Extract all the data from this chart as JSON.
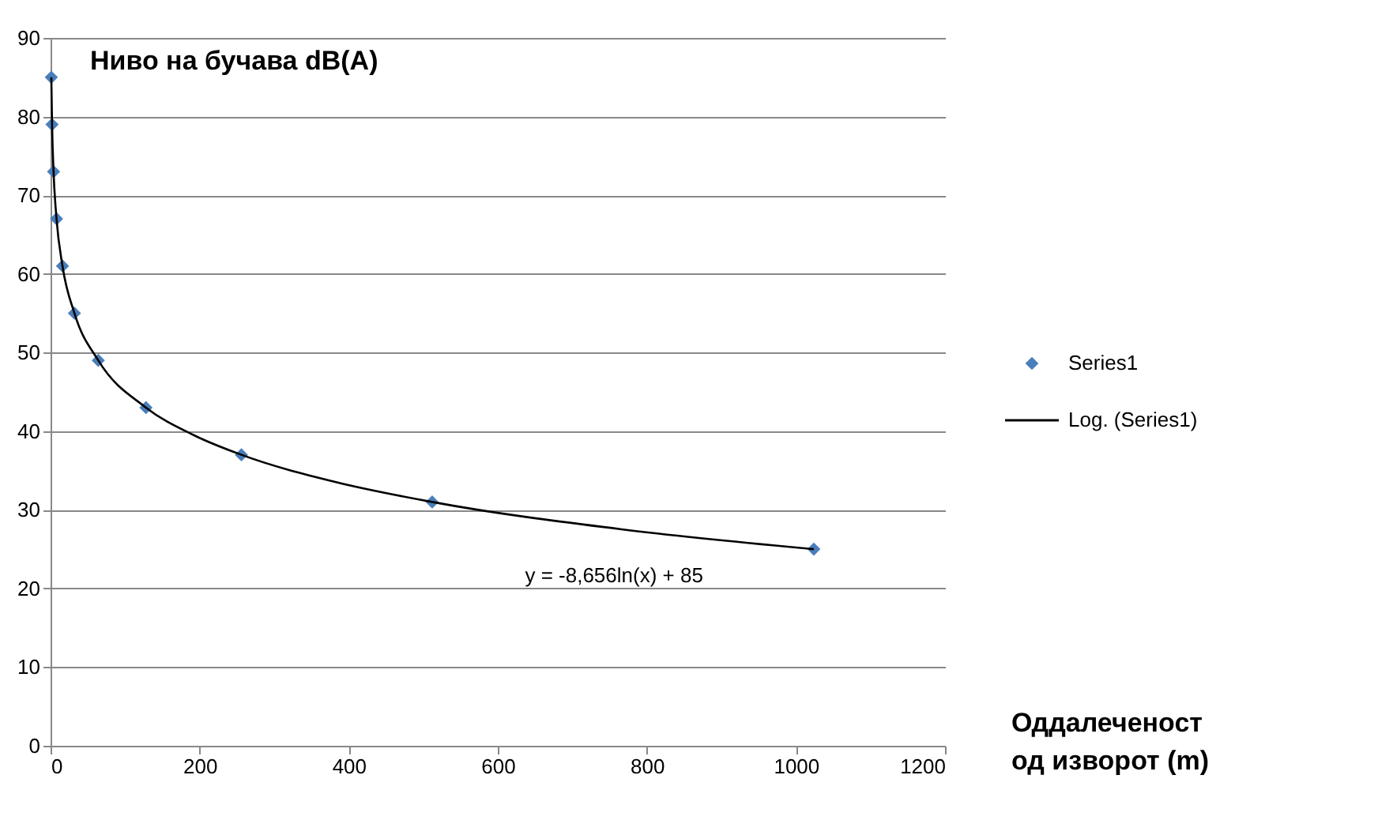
{
  "chart_data": {
    "type": "scatter",
    "title": "Ниво на бучава dB(A)",
    "xlabel": "Оддалеченост\nод изворот (m)",
    "x": [
      1,
      2,
      4,
      8,
      16,
      32,
      64,
      128,
      256,
      512,
      1024
    ],
    "series": [
      {
        "name": "Series1",
        "color": "#4a7ebb",
        "marker": "diamond",
        "values": [
          85,
          79,
          73,
          67,
          61,
          55,
          49,
          43,
          37,
          31,
          25
        ]
      },
      {
        "name": "Log. (Series1)",
        "type": "line",
        "color": "#000000",
        "marker": "none",
        "x": [
          1,
          2,
          4,
          8,
          16,
          32,
          64,
          128,
          192,
          256,
          384,
          512,
          768,
          1024
        ],
        "values": [
          85,
          79,
          73,
          67,
          61,
          55,
          49,
          43,
          39.5,
          37,
          33.5,
          31,
          27.5,
          25
        ]
      }
    ],
    "annotations": [
      "y = -8,656ln(x) + 85"
    ],
    "xlim": [
      0,
      1200
    ],
    "xticks": [
      0,
      200,
      400,
      600,
      800,
      1000,
      1200
    ],
    "ylim": [
      0,
      90
    ],
    "yticks": [
      0,
      10,
      20,
      30,
      40,
      50,
      60,
      70,
      80,
      90
    ],
    "grid": "y",
    "legend": "right"
  }
}
